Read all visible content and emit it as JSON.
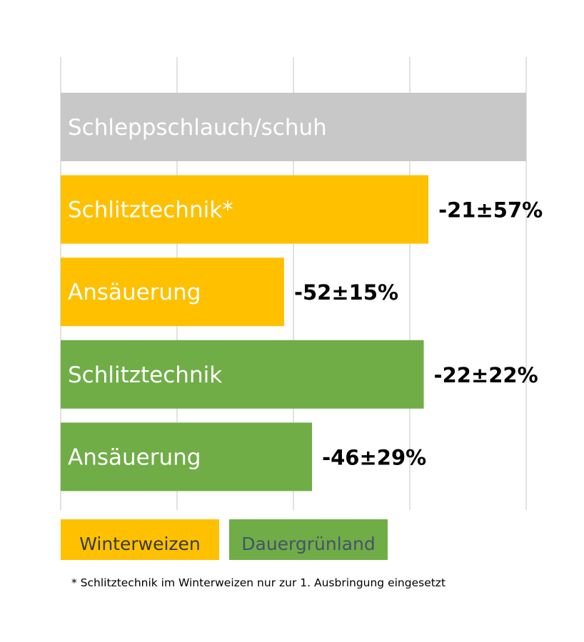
{
  "chart_data": {
    "type": "bar",
    "orientation": "horizontal",
    "grid": "vertical gridlines",
    "categories": [
      "Schleppschlauch/schuh",
      "Schlitztechnik*",
      "Ansäuerung",
      "Schlitztechnik",
      "Ansäuerung"
    ],
    "values": [
      100,
      79,
      48,
      78,
      54
    ],
    "value_labels": [
      "",
      "-21±57%",
      "-52±15%",
      "-22±22%",
      "-46±29%"
    ],
    "bar_groups": [
      "reference",
      "Winterweizen",
      "Winterweizen",
      "Dauergrünland",
      "Dauergrünland"
    ],
    "xlim": [
      0,
      100
    ],
    "legend": {
      "placement": "bottom-left",
      "items": [
        {
          "name": "Winterweizen",
          "color": "#ffc000",
          "text_color": "#3a3a3a"
        },
        {
          "name": "Dauergrünland",
          "color": "#70ad47",
          "text_color": "#44546a"
        }
      ]
    },
    "colors": {
      "reference": "#c8c8c8",
      "Winterweizen": "#ffc000",
      "Dauergrünland": "#70ad47",
      "grid": "#d9d9d9"
    },
    "footnote": "* Schlitztechnik im Winterweizen nur zur 1. Ausbringung eingesetzt"
  }
}
